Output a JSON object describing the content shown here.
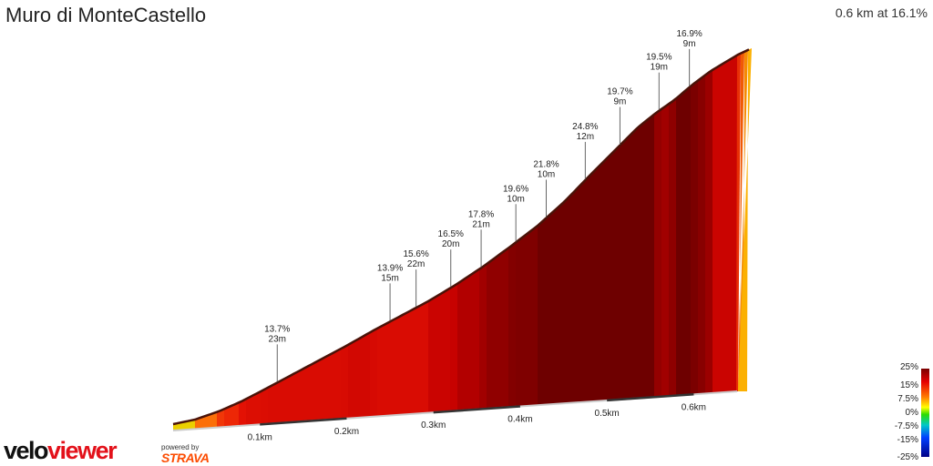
{
  "header": {
    "title": "Muro di MonteCastello",
    "summary": "0.6 km at 16.1%"
  },
  "chart_data": {
    "type": "area",
    "title": "Muro di MonteCastello",
    "x_unit": "km",
    "xlim": [
      0,
      0.65
    ],
    "x_ticks": [
      {
        "value": 0.1,
        "label": "0.1km"
      },
      {
        "value": 0.2,
        "label": "0.2km"
      },
      {
        "value": 0.3,
        "label": "0.3km"
      },
      {
        "value": 0.4,
        "label": "0.4km"
      },
      {
        "value": 0.5,
        "label": "0.5km"
      },
      {
        "value": 0.6,
        "label": "0.6km"
      }
    ],
    "segments": [
      {
        "x": 0.12,
        "gradient": "13.7%",
        "length": "23m"
      },
      {
        "x": 0.25,
        "gradient": "13.9%",
        "length": "15m"
      },
      {
        "x": 0.28,
        "gradient": "15.6%",
        "length": "22m"
      },
      {
        "x": 0.32,
        "gradient": "16.5%",
        "length": "20m"
      },
      {
        "x": 0.355,
        "gradient": "17.8%",
        "length": "21m"
      },
      {
        "x": 0.395,
        "gradient": "19.6%",
        "length": "10m"
      },
      {
        "x": 0.43,
        "gradient": "21.8%",
        "length": "10m"
      },
      {
        "x": 0.475,
        "gradient": "24.8%",
        "length": "12m"
      },
      {
        "x": 0.515,
        "gradient": "19.7%",
        "length": "9m"
      },
      {
        "x": 0.56,
        "gradient": "19.5%",
        "length": "19m"
      },
      {
        "x": 0.595,
        "gradient": "16.9%",
        "length": "9m"
      }
    ],
    "color_scale": {
      "labels": [
        "25%",
        "15%",
        "7.5%",
        "0%",
        "-7.5%",
        "-15%",
        "-25%"
      ]
    }
  },
  "branding": {
    "velo": "velo",
    "viewer": "viewer",
    "powered_by": "powered by",
    "strava": "STRAVA"
  }
}
